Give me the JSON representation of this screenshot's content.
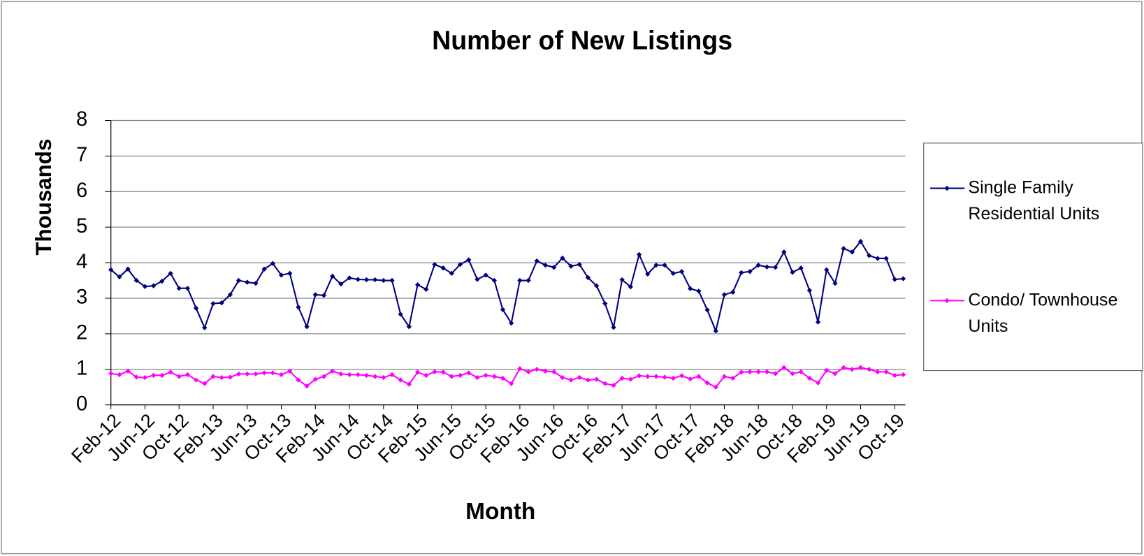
{
  "chart_data": {
    "type": "line",
    "title": "Number of New Listings",
    "x_label": "Month",
    "y_label": "Thousands",
    "categories": [
      "Feb-12",
      null,
      null,
      null,
      "Jun-12",
      null,
      null,
      null,
      "Oct-12",
      null,
      null,
      null,
      "Feb-13",
      null,
      null,
      null,
      "Jun-13",
      null,
      null,
      null,
      "Oct-13",
      null,
      null,
      null,
      "Feb-14",
      null,
      null,
      null,
      "Jun-14",
      null,
      null,
      null,
      "Oct-14",
      null,
      null,
      null,
      "Feb-15",
      null,
      null,
      null,
      "Jun-15",
      null,
      null,
      null,
      "Oct-15",
      null,
      null,
      null,
      "Feb-16",
      null,
      null,
      null,
      "Jun-16",
      null,
      null,
      null,
      "Oct-16",
      null,
      null,
      null,
      "Feb-17",
      null,
      null,
      null,
      "Jun-17",
      null,
      null,
      null,
      "Oct-17",
      null,
      null,
      null,
      "Feb-18",
      null,
      null,
      null,
      "Jun-18",
      null,
      null,
      null,
      "Oct-18",
      null,
      null,
      null,
      "Feb-19",
      null,
      null,
      null,
      "Jun-19",
      null,
      null,
      null,
      "Oct-19",
      null
    ],
    "series": [
      {
        "name": "Single Family Residential Units",
        "color": "#000080",
        "values": [
          3.8,
          3.6,
          3.82,
          3.5,
          3.33,
          3.35,
          3.48,
          3.7,
          3.28,
          3.28,
          2.72,
          2.17,
          2.85,
          2.87,
          3.1,
          3.5,
          3.45,
          3.42,
          3.82,
          3.98,
          3.65,
          3.7,
          2.75,
          2.2,
          3.1,
          3.08,
          3.62,
          3.4,
          3.57,
          3.53,
          3.52,
          3.52,
          3.5,
          3.5,
          2.55,
          2.2,
          3.38,
          3.25,
          3.95,
          3.85,
          3.7,
          3.95,
          4.08,
          3.53,
          3.65,
          3.5,
          2.68,
          2.3,
          3.5,
          3.5,
          4.05,
          3.93,
          3.87,
          4.13,
          3.9,
          3.95,
          3.58,
          3.35,
          2.85,
          2.18,
          3.52,
          3.32,
          4.23,
          3.68,
          3.93,
          3.93,
          3.7,
          3.75,
          3.27,
          3.2,
          2.67,
          2.08,
          3.1,
          3.17,
          3.72,
          3.75,
          3.93,
          3.88,
          3.87,
          4.3,
          3.73,
          3.85,
          3.22,
          2.33,
          3.8,
          3.42,
          4.4,
          4.3,
          4.6,
          4.2,
          4.12,
          4.12,
          3.53,
          3.55
        ]
      },
      {
        "name": "Condo/ Townhouse Units",
        "color": "#ff00ff",
        "values": [
          0.88,
          0.85,
          0.95,
          0.78,
          0.77,
          0.83,
          0.83,
          0.92,
          0.8,
          0.85,
          0.7,
          0.6,
          0.8,
          0.77,
          0.78,
          0.87,
          0.87,
          0.87,
          0.9,
          0.9,
          0.85,
          0.95,
          0.7,
          0.53,
          0.72,
          0.8,
          0.95,
          0.87,
          0.85,
          0.85,
          0.83,
          0.8,
          0.77,
          0.85,
          0.7,
          0.58,
          0.92,
          0.83,
          0.93,
          0.92,
          0.8,
          0.83,
          0.9,
          0.77,
          0.83,
          0.8,
          0.75,
          0.6,
          1.02,
          0.93,
          1.0,
          0.95,
          0.93,
          0.77,
          0.7,
          0.77,
          0.7,
          0.72,
          0.6,
          0.55,
          0.75,
          0.72,
          0.82,
          0.8,
          0.8,
          0.78,
          0.75,
          0.82,
          0.73,
          0.8,
          0.62,
          0.5,
          0.8,
          0.75,
          0.92,
          0.93,
          0.93,
          0.93,
          0.88,
          1.05,
          0.88,
          0.93,
          0.75,
          0.62,
          0.97,
          0.88,
          1.05,
          1.0,
          1.05,
          1.0,
          0.93,
          0.93,
          0.83,
          0.85
        ]
      }
    ],
    "ylim": [
      0,
      8
    ],
    "yticks": [
      0,
      1,
      2,
      3,
      4,
      5,
      6,
      7,
      8
    ],
    "grid": true,
    "legend": "right"
  }
}
